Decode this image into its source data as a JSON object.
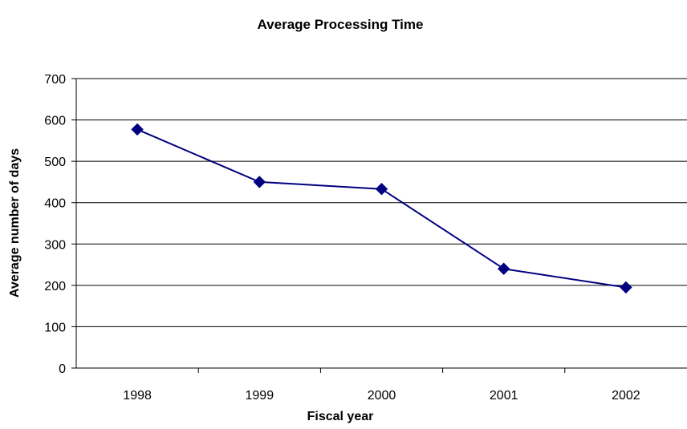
{
  "chart_data": {
    "type": "line",
    "title": "Average Processing Time",
    "xlabel": "Fiscal year",
    "ylabel": "Average number of days",
    "categories": [
      "1998",
      "1999",
      "2000",
      "2001",
      "2002"
    ],
    "series": [
      {
        "values": [
          577,
          450,
          433,
          240,
          195
        ],
        "color": "#000080",
        "marker": "diamond"
      }
    ],
    "ylim": [
      0,
      700
    ],
    "yticks": [
      0,
      100,
      200,
      300,
      400,
      500,
      600,
      700
    ],
    "ytick_labels": [
      "0",
      "100",
      "200",
      "300",
      "400",
      "500",
      "600",
      "700"
    ],
    "grid": true,
    "legend": "none"
  }
}
